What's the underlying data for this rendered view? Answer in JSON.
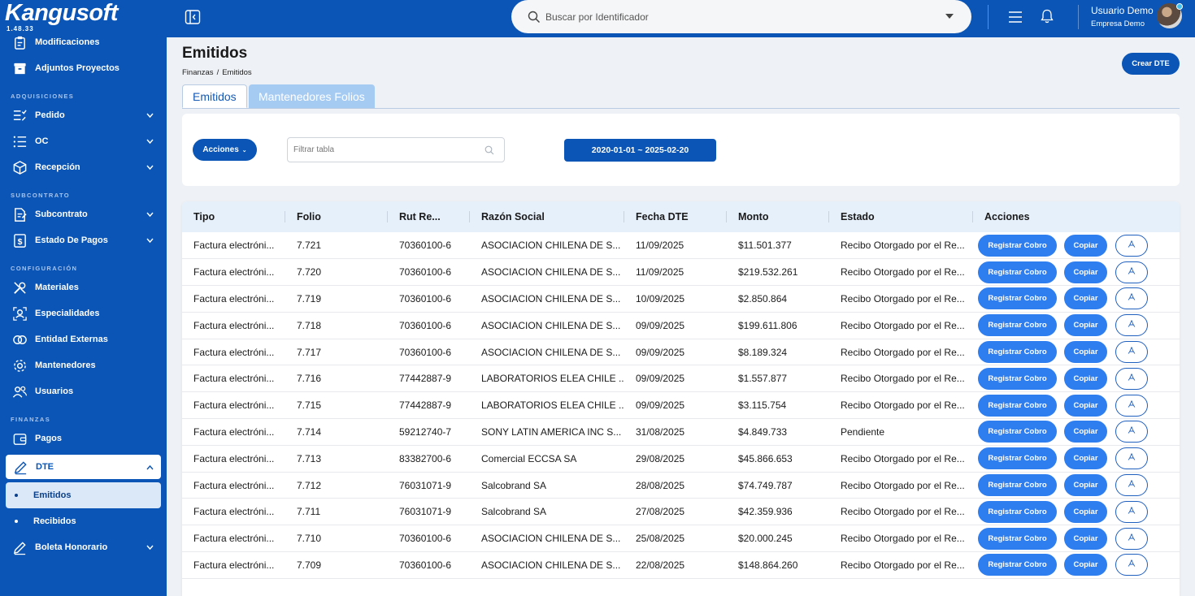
{
  "app": {
    "brand": "Kangusoft",
    "version": "1.48.33"
  },
  "sidebar": {
    "top_items": [
      {
        "label": "Modificaciones",
        "icon": "clipboard-edit-icon"
      },
      {
        "label": "Adjuntos Proyectos",
        "icon": "archive-box-icon"
      }
    ],
    "sections": [
      {
        "title": "ADQUISICIONES",
        "items": [
          {
            "label": "Pedido",
            "icon": "list-check-icon",
            "expandable": true
          },
          {
            "label": "OC",
            "icon": "checklist-icon",
            "expandable": true
          },
          {
            "label": "Recepción",
            "icon": "package-icon",
            "expandable": true
          }
        ]
      },
      {
        "title": "SUBCONTRATO",
        "items": [
          {
            "label": "Subcontrato",
            "icon": "document-edit-icon",
            "expandable": true
          },
          {
            "label": "Estado De Pagos",
            "icon": "dollar-doc-icon",
            "expandable": true
          }
        ]
      },
      {
        "title": "CONFIGURACIÓN",
        "items": [
          {
            "label": "Materiales",
            "icon": "tools-icon"
          },
          {
            "label": "Especialidades",
            "icon": "user-focus-icon"
          },
          {
            "label": "Entidad Externas",
            "icon": "entities-icon"
          },
          {
            "label": "Mantenedores",
            "icon": "gear-icon"
          },
          {
            "label": "Usuarios",
            "icon": "users-icon"
          }
        ]
      },
      {
        "title": "FINANZAS",
        "items": [
          {
            "label": "Pagos",
            "icon": "wallet-icon"
          },
          {
            "label": "DTE",
            "icon": "pen-icon",
            "expanded": true
          },
          {
            "label": "Emitidos",
            "sub": true,
            "selected": true
          },
          {
            "label": "Recibidos",
            "sub": true
          },
          {
            "label": "Boleta Honorario",
            "icon": "pen-icon",
            "expandable": true
          }
        ]
      }
    ]
  },
  "topbar": {
    "search_placeholder": "Buscar por Identificador",
    "user_name": "Usuario Demo",
    "user_company": "Empresa Demo"
  },
  "page": {
    "title": "Emitidos",
    "breadcrumb": [
      "Finanzas",
      "Emitidos"
    ],
    "breadcrumb_sep": "/",
    "create_button": "Crear DTE",
    "tabs": [
      "Emitidos",
      "Mantenedores Folios"
    ]
  },
  "filters": {
    "actions_label": "Acciones",
    "filter_placeholder": "Filtrar tabla",
    "date_range": "2020-01-01 ~ 2025-02-20"
  },
  "table": {
    "columns": [
      "Tipo",
      "Folio",
      "Rut Re...",
      "Razón Social",
      "Fecha DTE",
      "Monto",
      "Estado",
      "Acciones"
    ],
    "action_labels": {
      "register": "Registrar Cobro",
      "copy": "Copiar"
    },
    "rows": [
      [
        "Factura electróni...",
        "7.721",
        "70360100-6",
        "ASOCIACION CHILENA DE S...",
        "11/09/2025",
        "$11.501.377",
        "Recibo Otorgado por el Re..."
      ],
      [
        "Factura electróni...",
        "7.720",
        "70360100-6",
        "ASOCIACION CHILENA DE S...",
        "11/09/2025",
        "$219.532.261",
        "Recibo Otorgado por el Re..."
      ],
      [
        "Factura electróni...",
        "7.719",
        "70360100-6",
        "ASOCIACION CHILENA DE S...",
        "10/09/2025",
        "$2.850.864",
        "Recibo Otorgado por el Re..."
      ],
      [
        "Factura electróni...",
        "7.718",
        "70360100-6",
        "ASOCIACION CHILENA DE S...",
        "09/09/2025",
        "$199.611.806",
        "Recibo Otorgado por el Re..."
      ],
      [
        "Factura electróni...",
        "7.717",
        "70360100-6",
        "ASOCIACION CHILENA DE S...",
        "09/09/2025",
        "$8.189.324",
        "Recibo Otorgado por el Re..."
      ],
      [
        "Factura electróni...",
        "7.716",
        "77442887-9",
        "LABORATORIOS ELEA CHILE ...",
        "09/09/2025",
        "$1.557.877",
        "Recibo Otorgado por el Re..."
      ],
      [
        "Factura electróni...",
        "7.715",
        "77442887-9",
        "LABORATORIOS ELEA CHILE ...",
        "09/09/2025",
        "$3.115.754",
        "Recibo Otorgado por el Re..."
      ],
      [
        "Factura electróni...",
        "7.714",
        "59212740-7",
        "SONY LATIN AMERICA INC S...",
        "31/08/2025",
        "$4.849.733",
        "Pendiente"
      ],
      [
        "Factura electróni...",
        "7.713",
        "83382700-6",
        "Comercial ECCSA SA",
        "29/08/2025",
        "$45.866.653",
        "Recibo Otorgado por el Re..."
      ],
      [
        "Factura electróni...",
        "7.712",
        "76031071-9",
        "Salcobrand SA",
        "28/08/2025",
        "$74.749.787",
        "Recibo Otorgado por el Re..."
      ],
      [
        "Factura electróni...",
        "7.711",
        "76031071-9",
        "Salcobrand SA",
        "27/08/2025",
        "$42.359.936",
        "Recibo Otorgado por el Re..."
      ],
      [
        "Factura electróni...",
        "7.710",
        "70360100-6",
        "ASOCIACION CHILENA DE S...",
        "25/08/2025",
        "$20.000.245",
        "Recibo Otorgado por el Re..."
      ],
      [
        "Factura electróni...",
        "7.709",
        "70360100-6",
        "ASOCIACION CHILENA DE S...",
        "22/08/2025",
        "$148.864.260",
        "Recibo Otorgado por el Re..."
      ]
    ]
  }
}
